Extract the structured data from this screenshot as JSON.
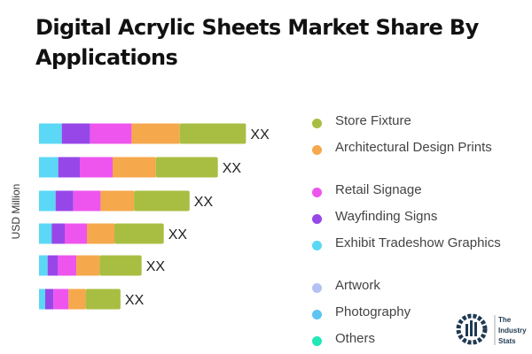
{
  "title": "Digital Acrylic Sheets Market Share By Applications",
  "chart_data": {
    "type": "bar",
    "orientation": "horizontal",
    "stacked": true,
    "ylabel": "USD Million",
    "categories": [
      "",
      "",
      "",
      "",
      "",
      ""
    ],
    "data_labels": [
      "XX",
      "XX",
      "XX",
      "XX",
      "XX",
      "XX"
    ],
    "grid": false,
    "legend_position": "right",
    "series": [
      {
        "name": "Exhibit Tradeshow Graphics",
        "color": "#5ad8f5",
        "values": [
          25.7,
          21.7,
          18.7,
          14.3,
          9.7,
          7
        ]
      },
      {
        "name": "Wayfinding Signs",
        "color": "#9747e8",
        "values": [
          32,
          24.3,
          20,
          14.7,
          11.7,
          9.3
        ]
      },
      {
        "name": "Retail Signage",
        "color": "#ee55ee",
        "values": [
          46.7,
          37,
          30.7,
          25,
          20.7,
          17
        ]
      },
      {
        "name": "Architectural Design Prints",
        "color": "#f5a84c",
        "values": [
          54.3,
          48.7,
          37.7,
          31,
          26.3,
          19.3
        ]
      },
      {
        "name": "Store Fixture",
        "color": "#a8be42",
        "values": [
          74.7,
          70,
          62.7,
          55.7,
          47.3,
          39.3
        ]
      }
    ],
    "legend": [
      {
        "name": "Store Fixture",
        "color": "#a8be42"
      },
      {
        "name": "Architectural Design Prints",
        "color": "#f5a84c"
      },
      {
        "name": "Retail Signage",
        "color": "#ee55ee"
      },
      {
        "name": "Wayfinding Signs",
        "color": "#9747e8"
      },
      {
        "name": "Exhibit Tradeshow Graphics",
        "color": "#5ad8f5"
      },
      {
        "name": "Artwork",
        "color": "#b3c2f2"
      },
      {
        "name": "Photography",
        "color": "#5ec4f2"
      },
      {
        "name": "Others",
        "color": "#22e8b8"
      }
    ]
  },
  "logo": {
    "text": "The Industry Stats"
  }
}
